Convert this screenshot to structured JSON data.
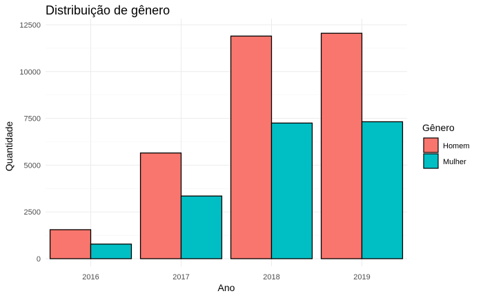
{
  "chart_data": {
    "type": "bar",
    "title": "Distribuição de gênero",
    "xlabel": "Ano",
    "ylabel": "Quantidade",
    "categories": [
      "2016",
      "2017",
      "2018",
      "2019"
    ],
    "series": [
      {
        "name": "Homem",
        "color": "#F8766D",
        "values": [
          1550,
          5650,
          11900,
          12050
        ]
      },
      {
        "name": "Mulher",
        "color": "#00BFC4",
        "values": [
          780,
          3350,
          7250,
          7320
        ]
      }
    ],
    "ylim": [
      0,
      12500
    ],
    "yticks": [
      0,
      2500,
      5000,
      7500,
      10000,
      12500
    ],
    "grid": true,
    "legend": {
      "title": "Gênero",
      "placement": "right"
    }
  }
}
